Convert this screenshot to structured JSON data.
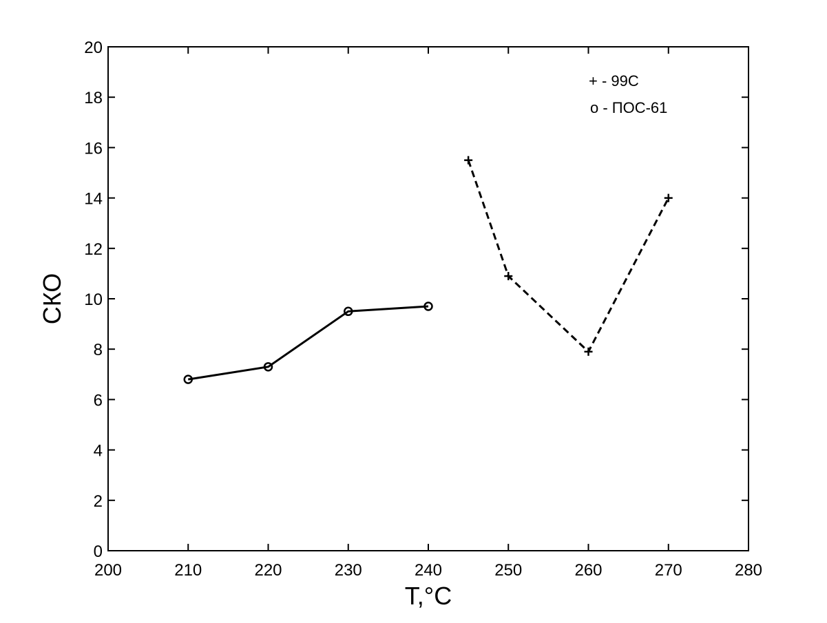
{
  "chart_data": {
    "type": "line",
    "title": "",
    "xlabel": "T,°C",
    "ylabel": "СКО",
    "xlim": [
      200,
      280
    ],
    "ylim": [
      0,
      20
    ],
    "xticks": [
      200,
      210,
      220,
      230,
      240,
      250,
      260,
      270,
      280
    ],
    "yticks": [
      0,
      2,
      4,
      6,
      8,
      10,
      12,
      14,
      16,
      18,
      20
    ],
    "grid": false,
    "legend_position": "top-right",
    "legend": [
      {
        "marker": "+",
        "text": "+ - 99С"
      },
      {
        "marker": "o",
        "text": "o - ПОС-61"
      }
    ],
    "series": [
      {
        "name": "ПОС-61",
        "marker": "o",
        "line_style": "solid",
        "color": "#000000",
        "x": [
          210,
          220,
          230,
          240
        ],
        "y": [
          6.8,
          7.3,
          9.5,
          9.7
        ]
      },
      {
        "name": "99С",
        "marker": "+",
        "line_style": "dashed",
        "color": "#000000",
        "x": [
          245,
          250,
          260,
          270
        ],
        "y": [
          15.5,
          10.9,
          7.9,
          14.0
        ]
      }
    ]
  }
}
